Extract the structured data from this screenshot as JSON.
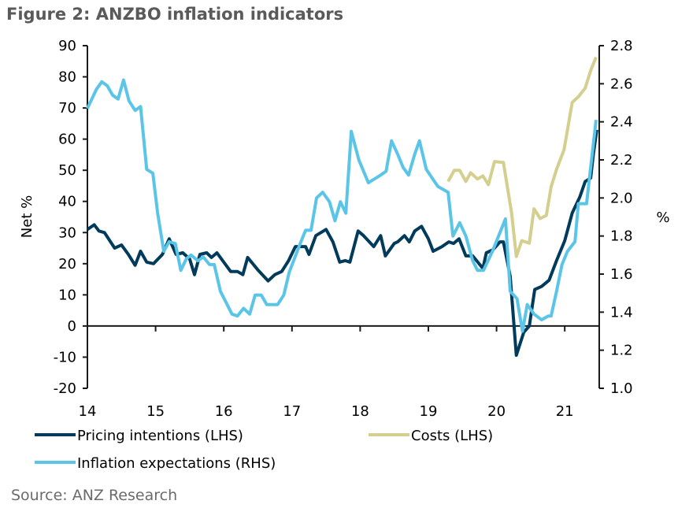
{
  "title": "Figure 2: ANZBO inflation indicators",
  "source": "Source: ANZ Research",
  "chart_data": {
    "type": "line",
    "title": "Figure 2: ANZBO inflation indicators",
    "ylabel": "Net %",
    "y2label": "%",
    "xlim": [
      14,
      21.5
    ],
    "ylim": [
      -20,
      90
    ],
    "y2lim": [
      1.0,
      2.8
    ],
    "xticks": [
      "14",
      "15",
      "16",
      "17",
      "18",
      "19",
      "20",
      "21"
    ],
    "yticks": [
      "90",
      "80",
      "70",
      "60",
      "50",
      "40",
      "30",
      "20",
      "10",
      "0",
      "-10",
      "-20"
    ],
    "y2ticks": [
      "2.8",
      "2.6",
      "2.4",
      "2.2",
      "2.0",
      "1.8",
      "1.6",
      "1.4",
      "1.2",
      "1.0"
    ],
    "legend_position": "bottom",
    "series": [
      {
        "name": "Pricing intentions (LHS)",
        "axis": "left",
        "color": "#003b5c",
        "points": [
          [
            14.0,
            31
          ],
          [
            14.1,
            32.5
          ],
          [
            14.17,
            30.5
          ],
          [
            14.25,
            30
          ],
          [
            14.4,
            25
          ],
          [
            14.5,
            26
          ],
          [
            14.6,
            23
          ],
          [
            14.7,
            19.5
          ],
          [
            14.78,
            24
          ],
          [
            14.87,
            20.5
          ],
          [
            14.97,
            20
          ],
          [
            15.1,
            23
          ],
          [
            15.2,
            28
          ],
          [
            15.3,
            23
          ],
          [
            15.4,
            23.5
          ],
          [
            15.5,
            21.5
          ],
          [
            15.57,
            16.5
          ],
          [
            15.65,
            23
          ],
          [
            15.75,
            23.5
          ],
          [
            15.82,
            22
          ],
          [
            15.9,
            23.5
          ],
          [
            16.1,
            17.5
          ],
          [
            16.2,
            17.5
          ],
          [
            16.28,
            16.5
          ],
          [
            16.35,
            22
          ],
          [
            16.5,
            18
          ],
          [
            16.65,
            14.5
          ],
          [
            16.75,
            16.5
          ],
          [
            16.85,
            17.5
          ],
          [
            16.95,
            21
          ],
          [
            17.05,
            25.5
          ],
          [
            17.2,
            25.5
          ],
          [
            17.25,
            23
          ],
          [
            17.35,
            29
          ],
          [
            17.5,
            31
          ],
          [
            17.6,
            27
          ],
          [
            17.7,
            20.5
          ],
          [
            17.78,
            21
          ],
          [
            17.85,
            20.5
          ],
          [
            17.97,
            30.5
          ],
          [
            18.05,
            29
          ],
          [
            18.2,
            25.5
          ],
          [
            18.3,
            29
          ],
          [
            18.37,
            22.5
          ],
          [
            18.5,
            26.5
          ],
          [
            18.55,
            27
          ],
          [
            18.65,
            29
          ],
          [
            18.72,
            27
          ],
          [
            18.8,
            30.5
          ],
          [
            18.9,
            32
          ],
          [
            19.0,
            28
          ],
          [
            19.07,
            24
          ],
          [
            19.2,
            25.5
          ],
          [
            19.3,
            27
          ],
          [
            19.37,
            26.5
          ],
          [
            19.45,
            28
          ],
          [
            19.55,
            22.5
          ],
          [
            19.65,
            22.5
          ],
          [
            19.8,
            18.5
          ],
          [
            19.85,
            23.5
          ],
          [
            19.95,
            24.5
          ],
          [
            20.05,
            27
          ],
          [
            20.1,
            27
          ],
          [
            20.2,
            16
          ],
          [
            20.29,
            -9.4
          ],
          [
            20.4,
            -2
          ],
          [
            20.48,
            0
          ],
          [
            20.56,
            11.7
          ],
          [
            20.66,
            12.7
          ],
          [
            20.77,
            14.7
          ],
          [
            20.88,
            21
          ],
          [
            21.0,
            27.4
          ],
          [
            21.11,
            36.3
          ],
          [
            21.22,
            41.4
          ],
          [
            21.3,
            46.4
          ],
          [
            21.38,
            47.5
          ],
          [
            21.42,
            55.3
          ],
          [
            21.47,
            63
          ]
        ]
      },
      {
        "name": "Costs (LHS)",
        "axis": "left",
        "color": "#d4cf8f",
        "points": [
          [
            19.29,
            46.4
          ],
          [
            19.38,
            50
          ],
          [
            19.46,
            50
          ],
          [
            19.55,
            46.4
          ],
          [
            19.62,
            49.2
          ],
          [
            19.72,
            47.2
          ],
          [
            19.8,
            48.2
          ],
          [
            19.88,
            45.4
          ],
          [
            19.97,
            52.8
          ],
          [
            20.1,
            52.5
          ],
          [
            20.22,
            36.3
          ],
          [
            20.29,
            22.3
          ],
          [
            20.37,
            27.4
          ],
          [
            20.48,
            26.6
          ],
          [
            20.55,
            37.6
          ],
          [
            20.64,
            34.5
          ],
          [
            20.73,
            35.5
          ],
          [
            20.8,
            44.7
          ],
          [
            20.88,
            50.3
          ],
          [
            20.99,
            56.6
          ],
          [
            21.11,
            71.8
          ],
          [
            21.2,
            73.6
          ],
          [
            21.3,
            76.4
          ],
          [
            21.38,
            82
          ],
          [
            21.46,
            86.3
          ]
        ]
      },
      {
        "name": "Inflation expectations (RHS)",
        "axis": "right",
        "color": "#5bc5e8",
        "points": [
          [
            14.0,
            2.47
          ],
          [
            14.13,
            2.57
          ],
          [
            14.21,
            2.61
          ],
          [
            14.29,
            2.59
          ],
          [
            14.37,
            2.54
          ],
          [
            14.45,
            2.52
          ],
          [
            14.53,
            2.62
          ],
          [
            14.61,
            2.51
          ],
          [
            14.7,
            2.46
          ],
          [
            14.78,
            2.48
          ],
          [
            14.87,
            2.15
          ],
          [
            14.96,
            2.13
          ],
          [
            15.03,
            1.92
          ],
          [
            15.12,
            1.72
          ],
          [
            15.2,
            1.77
          ],
          [
            15.29,
            1.76
          ],
          [
            15.37,
            1.62
          ],
          [
            15.45,
            1.68
          ],
          [
            15.52,
            1.7
          ],
          [
            15.62,
            1.67
          ],
          [
            15.7,
            1.69
          ],
          [
            15.79,
            1.65
          ],
          [
            15.86,
            1.65
          ],
          [
            15.95,
            1.51
          ],
          [
            16.12,
            1.39
          ],
          [
            16.2,
            1.38
          ],
          [
            16.29,
            1.42
          ],
          [
            16.38,
            1.39
          ],
          [
            16.46,
            1.49
          ],
          [
            16.55,
            1.49
          ],
          [
            16.63,
            1.44
          ],
          [
            16.79,
            1.44
          ],
          [
            16.88,
            1.49
          ],
          [
            16.96,
            1.61
          ],
          [
            17.12,
            1.76
          ],
          [
            17.2,
            1.83
          ],
          [
            17.28,
            1.83
          ],
          [
            17.36,
            2.0
          ],
          [
            17.45,
            2.03
          ],
          [
            17.55,
            1.98
          ],
          [
            17.63,
            1.88
          ],
          [
            17.71,
            1.98
          ],
          [
            17.79,
            1.92
          ],
          [
            17.87,
            2.35
          ],
          [
            17.98,
            2.2
          ],
          [
            18.12,
            2.08
          ],
          [
            18.21,
            2.1
          ],
          [
            18.3,
            2.12
          ],
          [
            18.38,
            2.14
          ],
          [
            18.46,
            2.3
          ],
          [
            18.55,
            2.23
          ],
          [
            18.63,
            2.16
          ],
          [
            18.71,
            2.12
          ],
          [
            18.8,
            2.23
          ],
          [
            18.87,
            2.3
          ],
          [
            18.97,
            2.15
          ],
          [
            19.14,
            2.06
          ],
          [
            19.29,
            2.03
          ],
          [
            19.36,
            1.8
          ],
          [
            19.46,
            1.87
          ],
          [
            19.55,
            1.8
          ],
          [
            19.65,
            1.67
          ],
          [
            19.72,
            1.62
          ],
          [
            19.81,
            1.62
          ],
          [
            19.94,
            1.72
          ],
          [
            20.13,
            1.89
          ],
          [
            20.2,
            1.51
          ],
          [
            20.3,
            1.47
          ],
          [
            20.38,
            1.3
          ],
          [
            20.45,
            1.44
          ],
          [
            20.55,
            1.39
          ],
          [
            20.66,
            1.36
          ],
          [
            20.76,
            1.38
          ],
          [
            20.8,
            1.38
          ],
          [
            20.88,
            1.51
          ],
          [
            20.96,
            1.65
          ],
          [
            21.04,
            1.72
          ],
          [
            21.15,
            1.77
          ],
          [
            21.2,
            1.97
          ],
          [
            21.32,
            1.97
          ],
          [
            21.46,
            2.41
          ]
        ]
      }
    ]
  }
}
